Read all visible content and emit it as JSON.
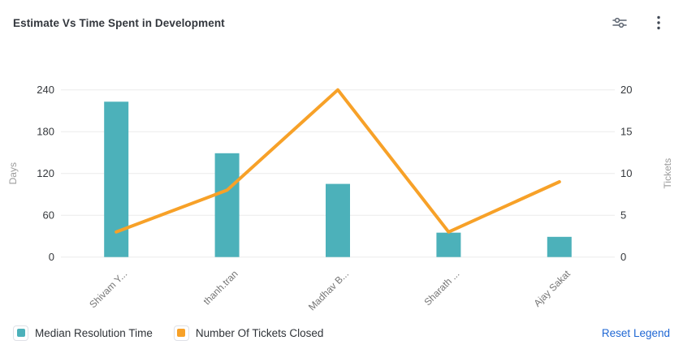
{
  "header": {
    "title": "Estimate Vs Time Spent in Development"
  },
  "chart_data": {
    "type": "bar",
    "subtype": "combo-bar-line",
    "title": "Estimate Vs Time Spent in Development",
    "categories": [
      "Shivam Y...",
      "thanh.tran",
      "Madhav B...",
      "Sharath ...",
      "Ajay Sakat"
    ],
    "series": [
      {
        "name": "Median Resolution Time",
        "type": "bar",
        "axis": "left",
        "color": "#4cb1ba",
        "values": [
          223,
          149,
          105,
          35,
          29
        ]
      },
      {
        "name": "Number Of Tickets Closed",
        "type": "line",
        "axis": "right",
        "color": "#f7a128",
        "values": [
          3,
          8,
          20,
          3,
          9
        ]
      }
    ],
    "left_axis": {
      "label": "Days",
      "ticks": [
        0,
        60,
        120,
        180,
        240
      ],
      "range": [
        0,
        240
      ]
    },
    "right_axis": {
      "label": "Tickets",
      "ticks": [
        0,
        5,
        10,
        15,
        20
      ],
      "range": [
        0,
        20
      ]
    },
    "grid": true,
    "gridline_color": "#ececec",
    "tick_label_color": "#35383c",
    "axis_name_color": "#9c9c9c",
    "x_label_color": "#757575",
    "legend_position": "bottom"
  },
  "legend": {
    "items": [
      {
        "label": "Median Resolution Time",
        "color": "#4cb1ba"
      },
      {
        "label": "Number Of Tickets Closed",
        "color": "#f7a128"
      }
    ],
    "reset_label": "Reset Legend",
    "reset_color": "#2068d4"
  }
}
